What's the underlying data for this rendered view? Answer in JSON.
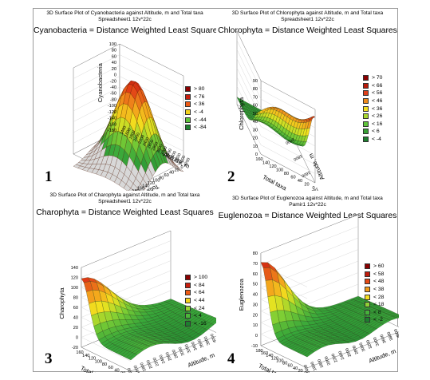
{
  "charts": [
    {
      "chart_data": {
        "type": "surface3d",
        "title": "3D Surface Plot of Cyanobacteria against Altitude, m and Total taxa",
        "subtitle": "Spreadsheet1 12v*22c",
        "heading": "Cyanobacteria = Distance Weighted Least Squares",
        "panel_number": "1",
        "zlabel": "Cyanobacteria",
        "xlabel": "Total taxa",
        "ylabel": "Altitude, m",
        "z_ticks": [
          "100",
          "80",
          "60",
          "40",
          "20",
          "0",
          "-20",
          "-40",
          "-60",
          "-80",
          "-100",
          "-120",
          "-140",
          "-160",
          "-180"
        ],
        "x_ticks": [
          "0",
          "20",
          "40",
          "60",
          "80",
          "100",
          "120",
          "140",
          "160",
          "180"
        ],
        "y_ticks": [
          "1400",
          "1600",
          "1800",
          "2000",
          "2200",
          "2400",
          "2600",
          "2800",
          "3000",
          "3200",
          "3400",
          "3600",
          "3800",
          "4000",
          "4200"
        ],
        "legend": [
          "> 80",
          "< 76",
          "< 36",
          "< -4",
          "< -44",
          "< -84"
        ],
        "legend_colors": [
          "#8b0000",
          "#c81e0e",
          "#ee5a14",
          "#f4d21c",
          "#5fc43a",
          "#1d7f2e"
        ]
      }
    },
    {
      "chart_data": {
        "type": "surface3d",
        "title": "3D Surface Plot of Chlorophyta against Altitude, m and Total taxa",
        "subtitle": "Spreadsheet1 12v*22c",
        "heading": "Chlorophyta = Distance Weighted Least Squares",
        "panel_number": "2",
        "zlabel": "Chlorophyta",
        "xlabel": "Total taxa",
        "ylabel": "Altitude, m",
        "z_ticks": [
          "90",
          "80",
          "70",
          "60",
          "50",
          "40",
          "30",
          "20",
          "10",
          "0"
        ],
        "x_ticks": [
          "160",
          "140",
          "120",
          "100",
          "80",
          "60",
          "40",
          "20",
          "0"
        ],
        "y_ticks": [
          "1400",
          "1600",
          "1800",
          "2000"
        ],
        "legend": [
          "> 70",
          "< 66",
          "< 56",
          "< 46",
          "< 36",
          "< 26",
          "< 16",
          "< 6",
          "< -4"
        ],
        "legend_colors": [
          "#8b0000",
          "#b81a0a",
          "#e0401a",
          "#f08a1a",
          "#f5e020",
          "#a8d830",
          "#5fc43a",
          "#38a035",
          "#1d7f2e"
        ]
      }
    },
    {
      "chart_data": {
        "type": "surface3d",
        "title": "3D Surface Plot of Charophyta against Altitude, m and Total taxa",
        "subtitle": "Spreadsheet1 12v*22c",
        "heading": "Charophyta = Distance Weighted Least Squares",
        "panel_number": "3",
        "zlabel": "Charophyta",
        "xlabel": "Total taxa",
        "ylabel": "Altitude, m",
        "z_ticks": [
          "140",
          "120",
          "100",
          "80",
          "60",
          "40",
          "20",
          "0",
          "-20"
        ],
        "x_ticks": [
          "160",
          "140",
          "120",
          "100",
          "80",
          "60",
          "40",
          "20",
          "0"
        ],
        "y_ticks": [
          "1400",
          "1600",
          "1800",
          "2000",
          "2200",
          "2400",
          "2600",
          "2800",
          "3000",
          "3200",
          "3400",
          "3600",
          "3800",
          "4000",
          "4200"
        ],
        "legend": [
          "> 100",
          "< 84",
          "< 64",
          "< 44",
          "< 24",
          "< 4",
          "< -16"
        ],
        "legend_colors": [
          "#8b0000",
          "#c81e0e",
          "#ee5a14",
          "#f4d21c",
          "#9ad433",
          "#4cb83a",
          "#1d7f2e"
        ]
      }
    },
    {
      "chart_data": {
        "type": "surface3d",
        "title": "3D Surface Plot of Euglenozoa against Altitude, m and Total taxa",
        "subtitle": "Pamir1 12v*22c",
        "heading": "Euglenozoa = Distance Weighted Least Squares",
        "panel_number": "4",
        "zlabel": "Euglenozoa",
        "xlabel": "Total taxa",
        "ylabel": "Altitude, m",
        "z_ticks": [
          "80",
          "70",
          "60",
          "50",
          "40",
          "30",
          "20",
          "10",
          "0",
          "-10"
        ],
        "x_ticks": [
          "180",
          "160",
          "140",
          "120",
          "100",
          "80",
          "60",
          "40",
          "20",
          "0"
        ],
        "y_ticks": [
          "1400",
          "1600",
          "1800",
          "2000",
          "2200",
          "2400",
          "2600",
          "2800",
          "3000",
          "3200",
          "3400",
          "3600",
          "3800",
          "4000",
          "4200"
        ],
        "legend": [
          "> 60",
          "< 58",
          "< 48",
          "< 38",
          "< 28",
          "< 18",
          "< 8",
          "< -2"
        ],
        "legend_colors": [
          "#8b0000",
          "#c01c0c",
          "#e64a16",
          "#f29a1a",
          "#f5e020",
          "#8fd035",
          "#45b23a",
          "#1d7f2e"
        ]
      }
    }
  ]
}
